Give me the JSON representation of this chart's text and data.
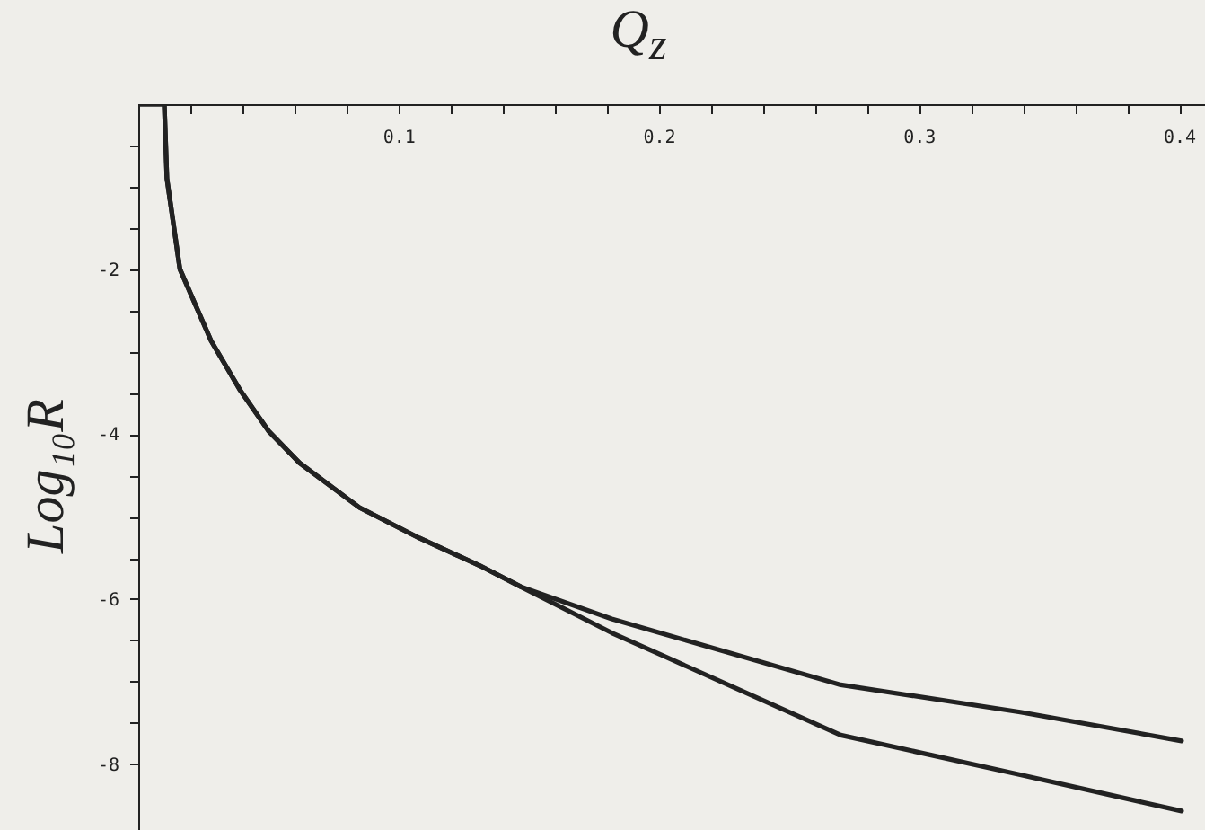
{
  "chart_data": {
    "type": "line",
    "xlabel": "Q$_{z}$",
    "ylabel": "Log₁₀R",
    "series": [
      {
        "color": "#222222",
        "x": [
          0,
          0.01,
          0.011,
          0.016,
          0.028,
          0.039,
          0.05,
          0.062,
          0.085,
          0.108,
          0.131,
          0.147,
          0.182,
          0.2005,
          0.27,
          0.339,
          0.401
        ],
        "values": [
          0,
          0,
          -0.9,
          -2.0,
          -2.87,
          -3.46,
          -3.96,
          -4.35,
          -4.89,
          -5.26,
          -5.59,
          -5.85,
          -6.24,
          -6.41,
          -7.04,
          -7.37,
          -7.72
        ]
      },
      {
        "color": "#222222",
        "x": [
          0,
          0.01,
          0.011,
          0.016,
          0.028,
          0.039,
          0.05,
          0.062,
          0.085,
          0.108,
          0.131,
          0.147,
          0.182,
          0.2005,
          0.27,
          0.339,
          0.401
        ],
        "values": [
          0,
          0,
          -0.9,
          -2.0,
          -2.87,
          -3.46,
          -3.96,
          -4.35,
          -4.89,
          -5.26,
          -5.59,
          -5.85,
          -6.41,
          -6.67,
          -7.65,
          -8.13,
          -8.57
        ]
      }
    ],
    "xlim": [
      0,
      0.41
    ],
    "ylim": [
      -8.8,
      0
    ],
    "xticks": [
      {
        "value": 0.02,
        "label": null
      },
      {
        "value": 0.04,
        "label": null
      },
      {
        "value": 0.06,
        "label": null
      },
      {
        "value": 0.08,
        "label": null
      },
      0.1,
      {
        "value": 0.12,
        "label": null
      },
      {
        "value": 0.14,
        "label": null
      },
      {
        "value": 0.16,
        "label": null
      },
      {
        "value": 0.18,
        "label": null
      },
      0.2,
      {
        "value": 0.22,
        "label": null
      },
      {
        "value": 0.24,
        "label": null
      },
      {
        "value": 0.26,
        "label": null
      },
      {
        "value": 0.28,
        "label": null
      },
      0.3,
      {
        "value": 0.32,
        "label": null
      },
      {
        "value": 0.34,
        "label": null
      },
      {
        "value": 0.36,
        "label": null
      },
      {
        "value": 0.38,
        "label": null
      },
      0.4
    ],
    "yticks": [
      -8,
      {
        "value": -7.5,
        "label": null
      },
      {
        "value": -7,
        "label": null
      },
      {
        "value": -6.5,
        "label": null
      },
      -6,
      {
        "value": -5.5,
        "label": null
      },
      {
        "value": -5,
        "label": null
      },
      {
        "value": -4.5,
        "label": null
      },
      -4,
      {
        "value": -3.5,
        "label": null
      },
      {
        "value": -3,
        "label": null
      },
      {
        "value": -2.5,
        "label": null
      },
      -2,
      {
        "value": -1.5,
        "label": null
      },
      {
        "value": -1,
        "label": null
      },
      {
        "value": -0.5,
        "label": null
      }
    ],
    "line_style": "solid",
    "marker": "none",
    "grid": false,
    "legend": false
  }
}
